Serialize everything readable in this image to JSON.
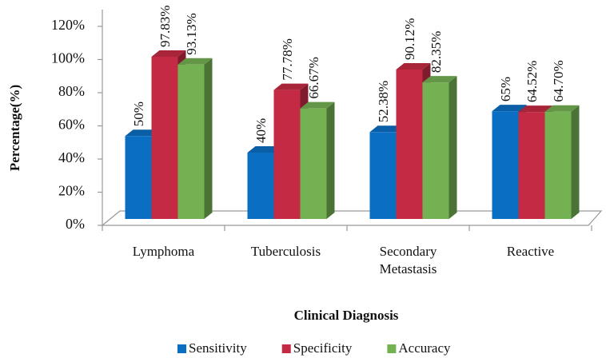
{
  "chart_data": {
    "type": "bar3d",
    "categories": [
      "Lymphoma",
      "Tuberculosis",
      "Secondary Metastasis",
      "Reactive"
    ],
    "series": [
      {
        "name": "Sensitivity",
        "color": "#0a6fc2",
        "values": [
          50,
          40,
          52.38,
          65
        ],
        "value_labels": [
          "50%",
          "40%",
          "52.38%",
          "65%"
        ]
      },
      {
        "name": "Specificity",
        "color": "#c42a43",
        "values": [
          97.83,
          77.78,
          90.12,
          64.52
        ],
        "value_labels": [
          "97.83%",
          "77.78%",
          "90.12%",
          "64.52%"
        ]
      },
      {
        "name": "Accuracy",
        "color": "#74b153",
        "values": [
          93.13,
          66.67,
          82.35,
          64.7
        ],
        "value_labels": [
          "93.13%",
          "66.67%",
          "82.35%",
          "64.70%"
        ]
      }
    ],
    "x_label": "Clinical Diagnosis",
    "y_label": "Percentage(%)",
    "ylim": [
      0,
      120
    ],
    "yticks": [
      {
        "value": 0,
        "label": "0%"
      },
      {
        "value": 20,
        "label": "20%"
      },
      {
        "value": 40,
        "label": "40%"
      },
      {
        "value": 60,
        "label": "60%"
      },
      {
        "value": 80,
        "label": "80%"
      },
      {
        "value": 100,
        "label": "100%"
      },
      {
        "value": 120,
        "label": "120%"
      }
    ],
    "legend": "bottom"
  }
}
